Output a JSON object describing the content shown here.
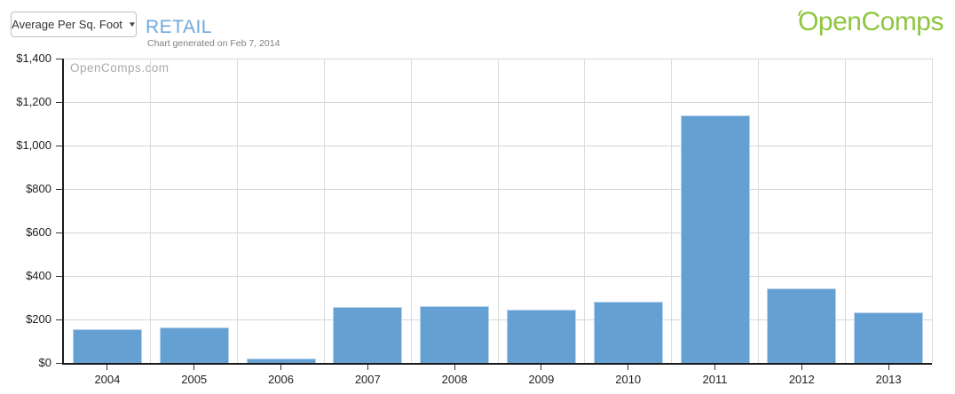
{
  "header": {
    "dropdown_label": "Average Per Sq. Foot",
    "title": "RETAIL",
    "subtitle": "Chart generated on Feb 7, 2014",
    "logo_text": "OpenComps"
  },
  "icons": {
    "chevron_down": "▼"
  },
  "colors": {
    "bar_fill": "#65a0d2",
    "bar_border": "#b7d3ec",
    "title_blue": "#6fa8dc",
    "logo_green": "#8dc63f",
    "gridline": "#d6d6d6",
    "axis": "#1a1a1a"
  },
  "chart_data": {
    "type": "bar",
    "title": "RETAIL",
    "subtitle": "Chart generated on Feb 7, 2014",
    "series_name": "Average Per Sq. Foot",
    "watermark": "OpenComps.com",
    "categories": [
      "2004",
      "2005",
      "2006",
      "2007",
      "2008",
      "2009",
      "2010",
      "2011",
      "2012",
      "2013"
    ],
    "values": [
      155,
      162,
      20,
      257,
      262,
      247,
      280,
      1140,
      343,
      231
    ],
    "xlabel": "",
    "ylabel": "",
    "ylim": [
      0,
      1400
    ],
    "y_tick_values": [
      0,
      200,
      400,
      600,
      800,
      1000,
      1200,
      1400
    ],
    "y_tick_labels": [
      "$0",
      "$200",
      "$400",
      "$600",
      "$800",
      "$1,000",
      "$1,200",
      "$1,400"
    ],
    "grid": true,
    "legend": false
  }
}
